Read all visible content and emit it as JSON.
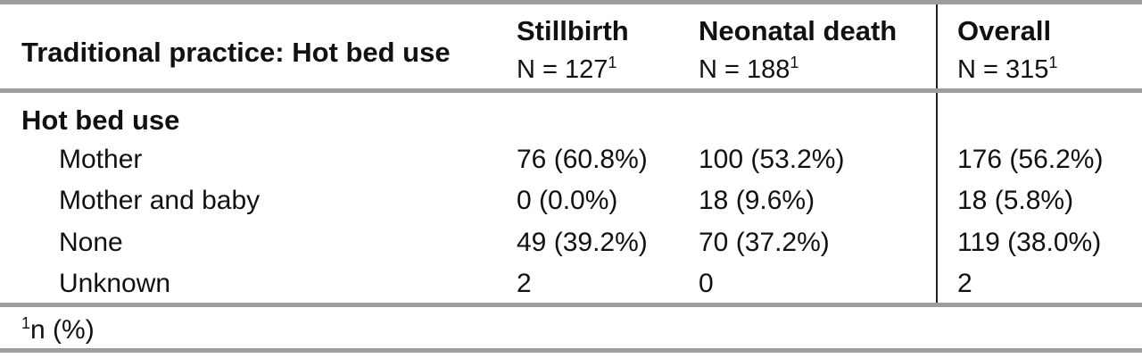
{
  "table": {
    "header": {
      "row_label": "Traditional practice: Hot bed use",
      "columns": [
        {
          "name": "Stillbirth",
          "n": "N = 127",
          "sup": "1"
        },
        {
          "name": "Neonatal death",
          "n": "N = 188",
          "sup": "1"
        },
        {
          "name": "Overall",
          "n": "N = 315",
          "sup": "1"
        }
      ]
    },
    "group_label": "Hot bed use",
    "rows": [
      {
        "label": "Mother",
        "values": [
          "76 (60.8%)",
          "100 (53.2%)",
          "176 (56.2%)"
        ]
      },
      {
        "label": "Mother and baby",
        "values": [
          "0 (0.0%)",
          "18 (9.6%)",
          "18 (5.8%)"
        ]
      },
      {
        "label": "None",
        "values": [
          "49 (39.2%)",
          "70 (37.2%)",
          "119 (38.0%)"
        ]
      },
      {
        "label": "Unknown",
        "values": [
          "2",
          "0",
          "2"
        ]
      }
    ],
    "footnote": {
      "sup": "1",
      "text": "n (%)"
    }
  }
}
